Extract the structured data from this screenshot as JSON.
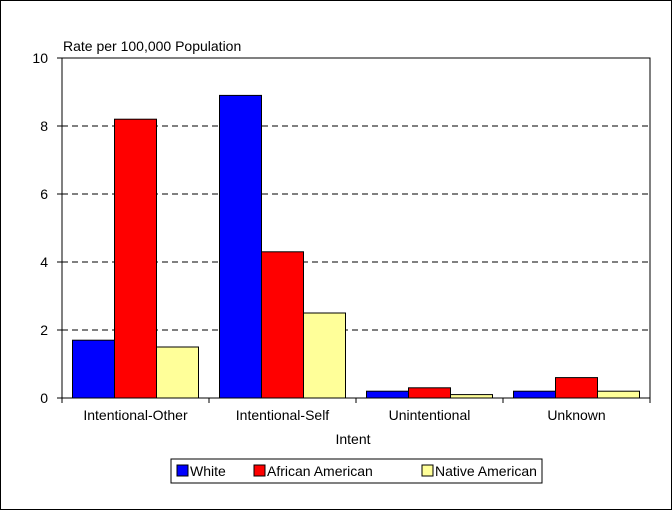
{
  "chart_data": {
    "type": "bar",
    "title": "",
    "ylabel": "Rate per 100,000 Population",
    "xlabel": "Intent",
    "ylim": [
      0,
      10
    ],
    "yticks": [
      0,
      2,
      4,
      6,
      8,
      10
    ],
    "grid": "horizontal dashed",
    "legend_position": "bottom",
    "categories": [
      "Intentional-Other",
      "Intentional-Self",
      "Unintentional",
      "Unknown"
    ],
    "series": [
      {
        "name": "White",
        "color": "#0000ff",
        "values": [
          1.7,
          8.9,
          0.2,
          0.2
        ]
      },
      {
        "name": "African American",
        "color": "#ff0000",
        "values": [
          8.2,
          4.3,
          0.3,
          0.6
        ]
      },
      {
        "name": "Native American",
        "color": "#ffff99",
        "values": [
          1.5,
          2.5,
          0.1,
          0.2
        ]
      }
    ]
  }
}
